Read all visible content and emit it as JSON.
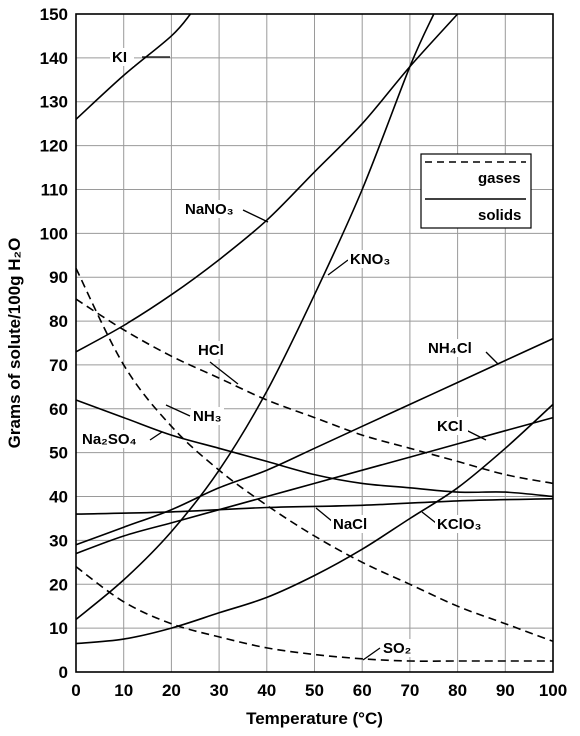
{
  "chart_data": {
    "type": "line",
    "xlabel": "Temperature (°C)",
    "ylabel": "Grams of solute/100g H₂O",
    "xlim": [
      0,
      100
    ],
    "ylim": [
      0,
      150
    ],
    "x_ticks": [
      0,
      10,
      20,
      30,
      40,
      50,
      60,
      70,
      80,
      90,
      100
    ],
    "y_ticks": [
      0,
      10,
      20,
      30,
      40,
      50,
      60,
      70,
      80,
      90,
      100,
      110,
      120,
      130,
      140,
      150
    ],
    "grid": true,
    "legend_position": "top-right",
    "legend": [
      {
        "label": "gases",
        "style": "dashed"
      },
      {
        "label": "solids",
        "style": "solid"
      }
    ],
    "series": [
      {
        "name": "KI",
        "style": "solid",
        "points": [
          [
            0,
            126
          ],
          [
            10,
            136
          ],
          [
            20,
            145
          ],
          [
            24,
            150
          ]
        ]
      },
      {
        "name": "NaNO₃",
        "style": "solid",
        "points": [
          [
            0,
            73
          ],
          [
            10,
            79
          ],
          [
            20,
            86
          ],
          [
            30,
            94
          ],
          [
            40,
            103
          ],
          [
            50,
            114
          ],
          [
            60,
            125
          ],
          [
            70,
            138
          ],
          [
            80,
            150
          ]
        ]
      },
      {
        "name": "KNO₃",
        "style": "solid",
        "points": [
          [
            0,
            12
          ],
          [
            10,
            21
          ],
          [
            20,
            32
          ],
          [
            30,
            46
          ],
          [
            40,
            64
          ],
          [
            50,
            86
          ],
          [
            60,
            110
          ],
          [
            70,
            138
          ],
          [
            75,
            150
          ]
        ]
      },
      {
        "name": "NH₄Cl",
        "style": "solid",
        "points": [
          [
            0,
            29
          ],
          [
            10,
            33
          ],
          [
            20,
            37
          ],
          [
            30,
            42
          ],
          [
            40,
            46
          ],
          [
            50,
            51
          ],
          [
            60,
            56
          ],
          [
            70,
            61
          ],
          [
            80,
            66
          ],
          [
            90,
            71
          ],
          [
            100,
            76
          ]
        ]
      },
      {
        "name": "KCl",
        "style": "solid",
        "points": [
          [
            0,
            27
          ],
          [
            10,
            31
          ],
          [
            20,
            34
          ],
          [
            30,
            37
          ],
          [
            40,
            40
          ],
          [
            50,
            43
          ],
          [
            60,
            46
          ],
          [
            70,
            49
          ],
          [
            80,
            52
          ],
          [
            90,
            55
          ],
          [
            100,
            58
          ]
        ]
      },
      {
        "name": "Na₂SO₄",
        "style": "solid",
        "points": [
          [
            0,
            62
          ],
          [
            10,
            58
          ],
          [
            20,
            54
          ],
          [
            30,
            51
          ],
          [
            40,
            48
          ],
          [
            50,
            45
          ],
          [
            60,
            43
          ],
          [
            70,
            42
          ],
          [
            80,
            41
          ],
          [
            90,
            41
          ],
          [
            100,
            40
          ]
        ]
      },
      {
        "name": "NaCl",
        "style": "solid",
        "points": [
          [
            0,
            36
          ],
          [
            20,
            36.5
          ],
          [
            40,
            37.5
          ],
          [
            60,
            38
          ],
          [
            80,
            39
          ],
          [
            100,
            39.5
          ]
        ]
      },
      {
        "name": "KClO₃",
        "style": "solid",
        "points": [
          [
            0,
            6.5
          ],
          [
            10,
            7.5
          ],
          [
            20,
            10
          ],
          [
            30,
            13.5
          ],
          [
            40,
            17
          ],
          [
            50,
            22
          ],
          [
            60,
            28
          ],
          [
            70,
            35
          ],
          [
            80,
            42
          ],
          [
            90,
            51
          ],
          [
            100,
            61
          ]
        ]
      },
      {
        "name": "HCl",
        "style": "dashed",
        "points": [
          [
            0,
            85
          ],
          [
            10,
            78
          ],
          [
            20,
            72
          ],
          [
            30,
            67
          ],
          [
            40,
            62
          ],
          [
            50,
            58
          ],
          [
            60,
            54
          ],
          [
            70,
            51
          ],
          [
            80,
            48
          ],
          [
            90,
            45
          ],
          [
            100,
            43
          ]
        ]
      },
      {
        "name": "NH₃",
        "style": "dashed",
        "points": [
          [
            0,
            92
          ],
          [
            10,
            70
          ],
          [
            20,
            56
          ],
          [
            30,
            46
          ],
          [
            40,
            38
          ],
          [
            50,
            31
          ],
          [
            60,
            25
          ],
          [
            70,
            20
          ],
          [
            80,
            15
          ],
          [
            90,
            11
          ],
          [
            100,
            7
          ]
        ]
      },
      {
        "name": "SO₂",
        "style": "dashed",
        "points": [
          [
            0,
            24
          ],
          [
            10,
            16
          ],
          [
            20,
            11
          ],
          [
            30,
            8
          ],
          [
            40,
            5.5
          ],
          [
            50,
            4
          ],
          [
            60,
            3
          ],
          [
            70,
            2.5
          ],
          [
            80,
            2.5
          ],
          [
            90,
            2.5
          ],
          [
            100,
            2.5
          ]
        ]
      }
    ],
    "annotations": [
      {
        "text": "KI"
      },
      {
        "text": "NaNO₃"
      },
      {
        "text": "KNO₃"
      },
      {
        "text": "NH₄Cl"
      },
      {
        "text": "KCl"
      },
      {
        "text": "Na₂SO₄"
      },
      {
        "text": "NaCl"
      },
      {
        "text": "KClO₃"
      },
      {
        "text": "HCl"
      },
      {
        "text": "NH₃"
      },
      {
        "text": "SO₂"
      }
    ]
  }
}
